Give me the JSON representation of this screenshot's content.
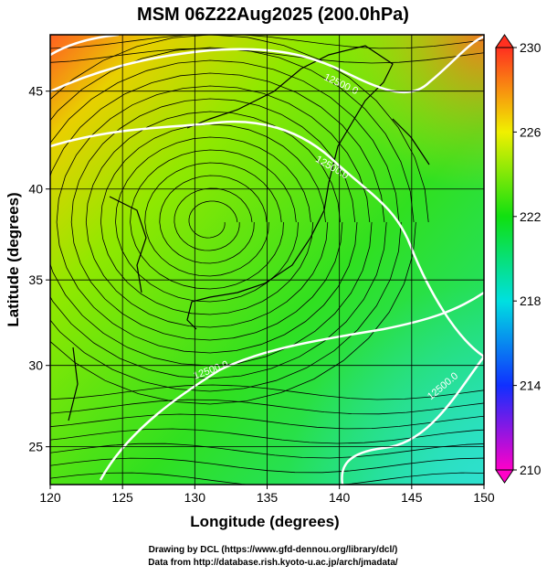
{
  "chart_data": {
    "type": "map",
    "title": "MSM 06Z22Aug2025 (200.0hPa)",
    "x_label": "Longitude (degrees)",
    "y_label": "Latitude  (degrees)",
    "xlim": [
      120,
      150
    ],
    "xticks": [
      120,
      125,
      130,
      135,
      140,
      145,
      150
    ],
    "ylim": [
      22.6,
      47.7
    ],
    "yticks": [
      25,
      30,
      35,
      40,
      45
    ],
    "y_scale": "mercator",
    "grid": true,
    "contour_labels": [
      "12500.0",
      "12500.0",
      "12500.0",
      "12500.0"
    ],
    "colorbar": {
      "lim": [
        210,
        230
      ],
      "ticks": [
        210,
        214,
        218,
        222,
        226,
        230
      ],
      "colors": [
        "#ff00c8",
        "#1030ff",
        "#00e0e0",
        "#10e010",
        "#f0f000",
        "#ff3020"
      ]
    }
  },
  "footer": {
    "line1": "Drawing by DCL (https://www.gfd-dennou.org/library/dcl/)",
    "line2": "Data from http://database.rish.kyoto-u.ac.jp/arch/jmadata/"
  }
}
